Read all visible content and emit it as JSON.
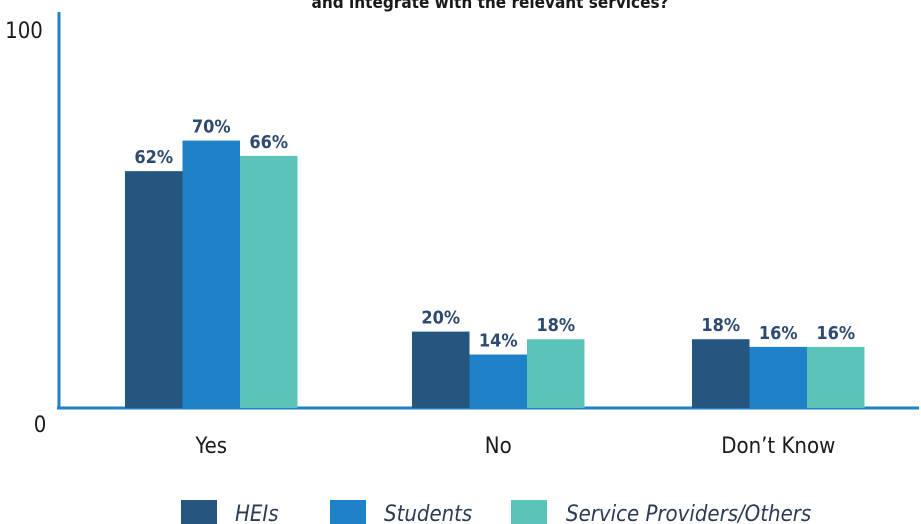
{
  "chart_data": {
    "type": "bar",
    "title": "and integrate with the relevant services?",
    "categories": [
      "Yes",
      "No",
      "Don’t Know"
    ],
    "series": [
      {
        "name": "HEIs",
        "values": [
          62,
          20,
          18
        ],
        "labels": [
          "62%",
          "20%",
          "18%"
        ],
        "color": "#24567f"
      },
      {
        "name": "Students",
        "values": [
          70,
          14,
          16
        ],
        "labels": [
          "70%",
          "14%",
          "16%"
        ],
        "color": "#1f82c8"
      },
      {
        "name": "Service Providers/Others",
        "values": [
          66,
          18,
          16
        ],
        "labels": [
          "66%",
          "18%",
          "16%"
        ],
        "color": "#5cc3b8"
      }
    ],
    "yticks": [
      "0",
      "100"
    ],
    "ylim": [
      0,
      100
    ],
    "grid": false,
    "legend_position": "bottom",
    "axis_color": "#1f82c8"
  }
}
